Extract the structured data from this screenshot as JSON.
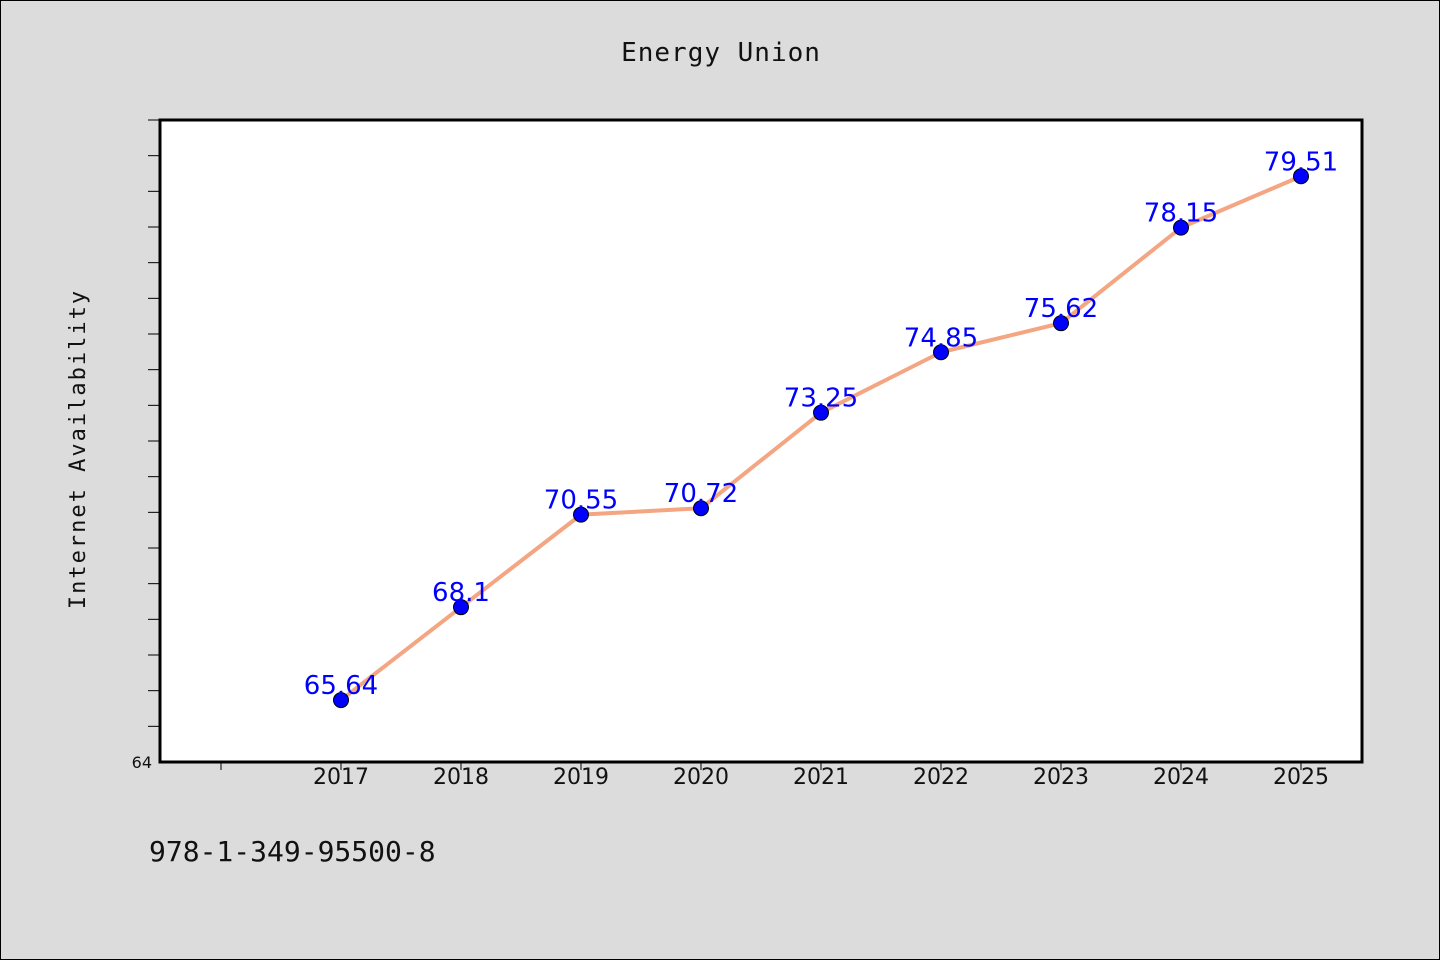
{
  "chart_data": {
    "type": "line",
    "title": "Energy Union",
    "xlabel": "",
    "ylabel": "Internet Availability",
    "x": [
      "2017",
      "2018",
      "2019",
      "2020",
      "2021",
      "2022",
      "2023",
      "2024",
      "2025"
    ],
    "series": [
      {
        "values": [
          65.64,
          68.1,
          70.55,
          70.72,
          73.25,
          74.85,
          75.62,
          78.15,
          79.51
        ],
        "labels": [
          "65.64",
          "68.1",
          "70.55",
          "70.72",
          "73.25",
          "74.85",
          "75.62",
          "78.15",
          "79.51"
        ],
        "line_color": "#f4a582",
        "marker_color": "#0000ff"
      }
    ],
    "ylim": [
      64,
      81
    ],
    "ytick_labels": [
      "64"
    ],
    "grid": false,
    "legend": "none"
  },
  "footer": {
    "isbn": "978-1-349-95500-8"
  },
  "colors": {
    "background": "#dcdcdc",
    "plot_area": "#ffffff",
    "line": "#f4a582",
    "marker": "#0000ff",
    "data_label": "#0000ff"
  }
}
